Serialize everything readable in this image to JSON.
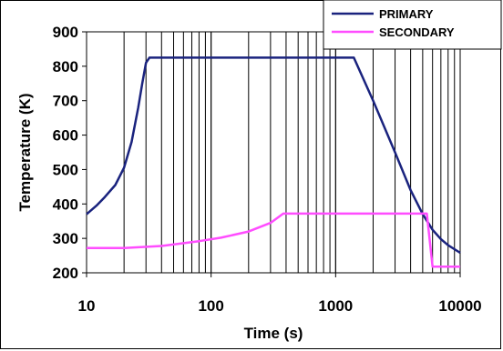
{
  "chart_data": {
    "type": "line",
    "title": "",
    "xlabel": "Time (s)",
    "ylabel": "Temperature (K)",
    "x_scale": "log",
    "xlim": [
      10,
      10000
    ],
    "ylim": [
      200,
      900
    ],
    "x_ticks": [
      10,
      100,
      1000,
      10000
    ],
    "x_tick_labels": [
      "10",
      "100",
      "1000",
      "10000"
    ],
    "y_ticks": [
      200,
      300,
      400,
      500,
      600,
      700,
      800,
      900
    ],
    "y_tick_labels": [
      "200",
      "300",
      "400",
      "500",
      "600",
      "700",
      "800",
      "900"
    ],
    "grid": "vertical minor log gridlines",
    "legend": "top-right",
    "series": [
      {
        "name": "PRIMARY",
        "color": "#1a237e",
        "points": [
          [
            10,
            370
          ],
          [
            12,
            395
          ],
          [
            14,
            420
          ],
          [
            17,
            455
          ],
          [
            20,
            505
          ],
          [
            23,
            580
          ],
          [
            26,
            680
          ],
          [
            28,
            750
          ],
          [
            30,
            810
          ],
          [
            32,
            825
          ],
          [
            200,
            825
          ],
          [
            1000,
            825
          ],
          [
            1400,
            825
          ],
          [
            2000,
            700
          ],
          [
            3000,
            550
          ],
          [
            4000,
            440
          ],
          [
            5000,
            370
          ],
          [
            6000,
            325
          ],
          [
            7000,
            298
          ],
          [
            8000,
            280
          ],
          [
            10000,
            258
          ]
        ]
      },
      {
        "name": "SECONDARY",
        "color": "#ff4dff",
        "points": [
          [
            10,
            272
          ],
          [
            20,
            272
          ],
          [
            40,
            278
          ],
          [
            80,
            292
          ],
          [
            120,
            302
          ],
          [
            200,
            320
          ],
          [
            300,
            345
          ],
          [
            380,
            372
          ],
          [
            1000,
            372
          ],
          [
            5000,
            372
          ],
          [
            5400,
            372
          ],
          [
            6000,
            218
          ],
          [
            10000,
            218
          ]
        ]
      }
    ]
  }
}
